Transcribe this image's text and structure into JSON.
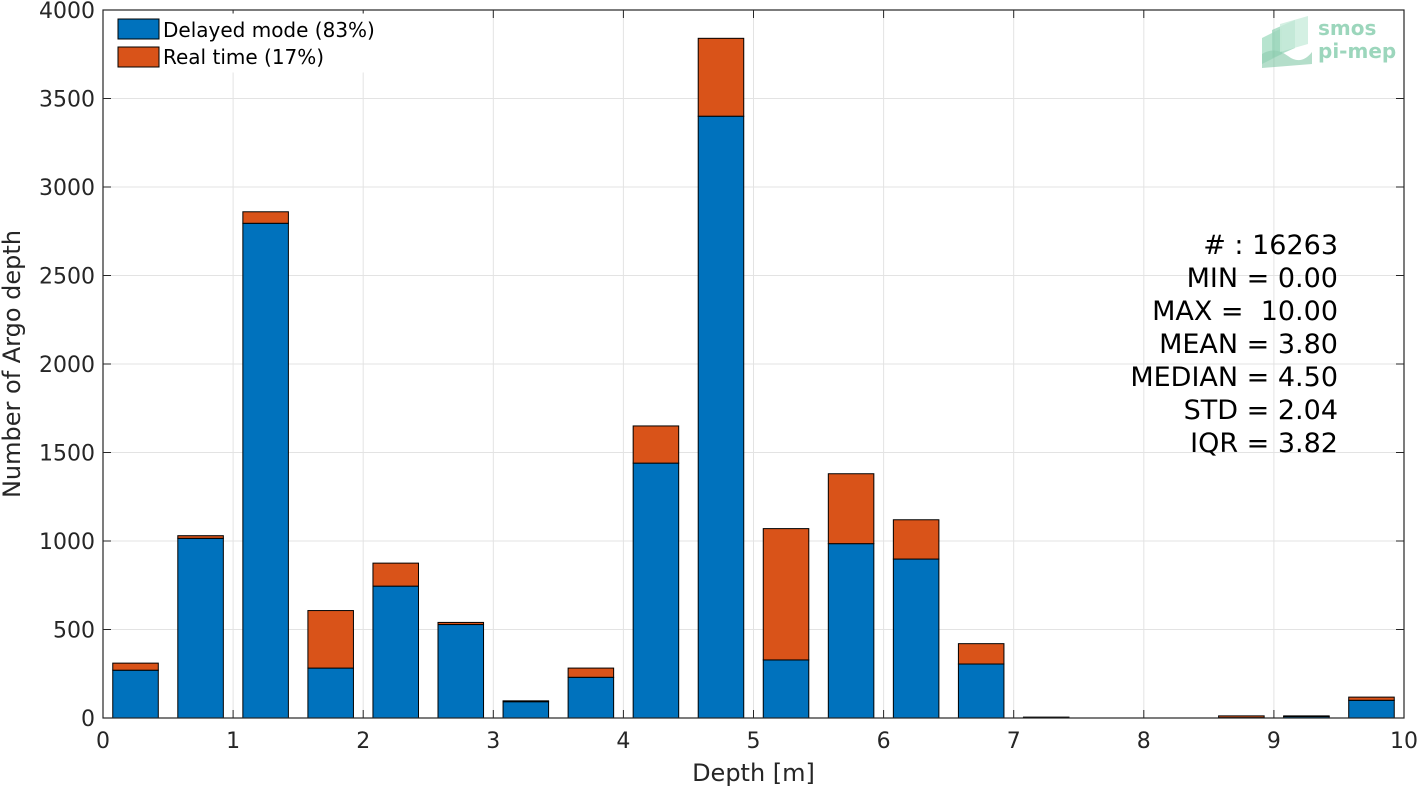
{
  "colors": {
    "delayed": "#0072BD",
    "realtime": "#D95319",
    "grid": "#e3e3e3",
    "axis": "#262626",
    "logo": "#7cc9a6"
  },
  "logo": {
    "top": "smos",
    "bottom": "pi-mep"
  },
  "stats": [
    "# : 16263",
    "MIN = 0.00",
    "MAX =  10.00",
    "MEAN = 3.80",
    "MEDIAN = 4.50",
    "STD = 2.04",
    "IQR = 3.82"
  ],
  "chart_data": {
    "type": "bar",
    "stacked": true,
    "title": "",
    "xlabel": "Depth [m]",
    "ylabel": "Number of Argo depth",
    "xlim": [
      0,
      10
    ],
    "ylim": [
      0,
      4000
    ],
    "xticks": [
      0,
      1,
      2,
      3,
      4,
      5,
      6,
      7,
      8,
      9,
      10
    ],
    "yticks": [
      0,
      500,
      1000,
      1500,
      2000,
      2500,
      3000,
      3500,
      4000
    ],
    "grid": true,
    "legend_position": "top-left",
    "bin_width": 0.5,
    "bin_centers": [
      0.25,
      0.75,
      1.25,
      1.75,
      2.25,
      2.75,
      3.25,
      3.75,
      4.25,
      4.75,
      5.25,
      5.75,
      6.25,
      6.75,
      7.25,
      7.75,
      8.25,
      8.75,
      9.25,
      9.75
    ],
    "series": [
      {
        "name": "Delayed mode (83%)",
        "color": "#0072BD",
        "values": [
          270,
          1015,
          2795,
          282,
          745,
          528,
          92,
          230,
          1440,
          3400,
          328,
          985,
          898,
          305,
          3,
          0,
          0,
          2,
          8,
          100
        ]
      },
      {
        "name": "Real time (17%)",
        "color": "#D95319",
        "values": [
          40,
          15,
          65,
          325,
          130,
          12,
          5,
          52,
          210,
          440,
          742,
          395,
          222,
          115,
          2,
          0,
          0,
          10,
          4,
          18
        ]
      }
    ]
  }
}
